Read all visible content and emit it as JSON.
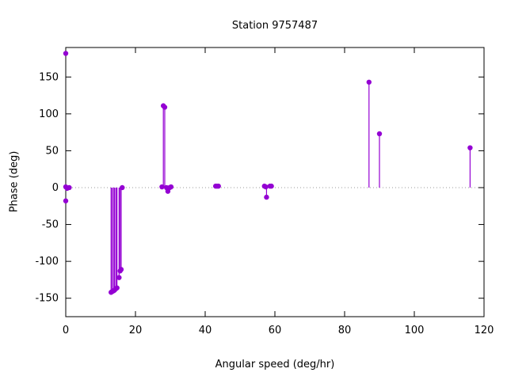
{
  "chart_data": {
    "type": "stem",
    "title": "Station 9757487",
    "xlabel": "Angular speed (deg/hr)",
    "ylabel": "Phase (deg)",
    "xlim": [
      0,
      120
    ],
    "ylim": [
      -175,
      190
    ],
    "xticks": [
      0,
      20,
      40,
      60,
      80,
      100,
      120
    ],
    "yticks": [
      -150,
      -100,
      -50,
      0,
      50,
      100,
      150
    ],
    "grid": false,
    "zero_axis": "dotted",
    "legend": "none",
    "series_color": "#9400d3",
    "axis_color": "#000000",
    "zero_line_color": "#999999",
    "points": [
      {
        "x": 0,
        "y": 182
      },
      {
        "x": 0,
        "y": 1
      },
      {
        "x": 0.4,
        "y": -1
      },
      {
        "x": 1,
        "y": 0
      },
      {
        "x": 0,
        "y": -18
      },
      {
        "x": 13,
        "y": -142
      },
      {
        "x": 13.3,
        "y": -141
      },
      {
        "x": 13.7,
        "y": -140
      },
      {
        "x": 14,
        "y": -139
      },
      {
        "x": 14.4,
        "y": -137
      },
      {
        "x": 14.7,
        "y": -136
      },
      {
        "x": 15.3,
        "y": -122
      },
      {
        "x": 15.6,
        "y": -113
      },
      {
        "x": 15.9,
        "y": -111
      },
      {
        "x": 16.2,
        "y": 0
      },
      {
        "x": 27.6,
        "y": 1
      },
      {
        "x": 28,
        "y": 111
      },
      {
        "x": 28.4,
        "y": 109
      },
      {
        "x": 28.9,
        "y": 0
      },
      {
        "x": 29.3,
        "y": -5
      },
      {
        "x": 29.8,
        "y": 0
      },
      {
        "x": 30.2,
        "y": 1
      },
      {
        "x": 43,
        "y": 2
      },
      {
        "x": 43.4,
        "y": 2
      },
      {
        "x": 43.8,
        "y": 2
      },
      {
        "x": 57,
        "y": 2
      },
      {
        "x": 57.4,
        "y": 1
      },
      {
        "x": 57.6,
        "y": -13
      },
      {
        "x": 58.6,
        "y": 2
      },
      {
        "x": 59,
        "y": 2
      },
      {
        "x": 87,
        "y": 143
      },
      {
        "x": 90,
        "y": 73
      },
      {
        "x": 116,
        "y": 54
      }
    ]
  }
}
